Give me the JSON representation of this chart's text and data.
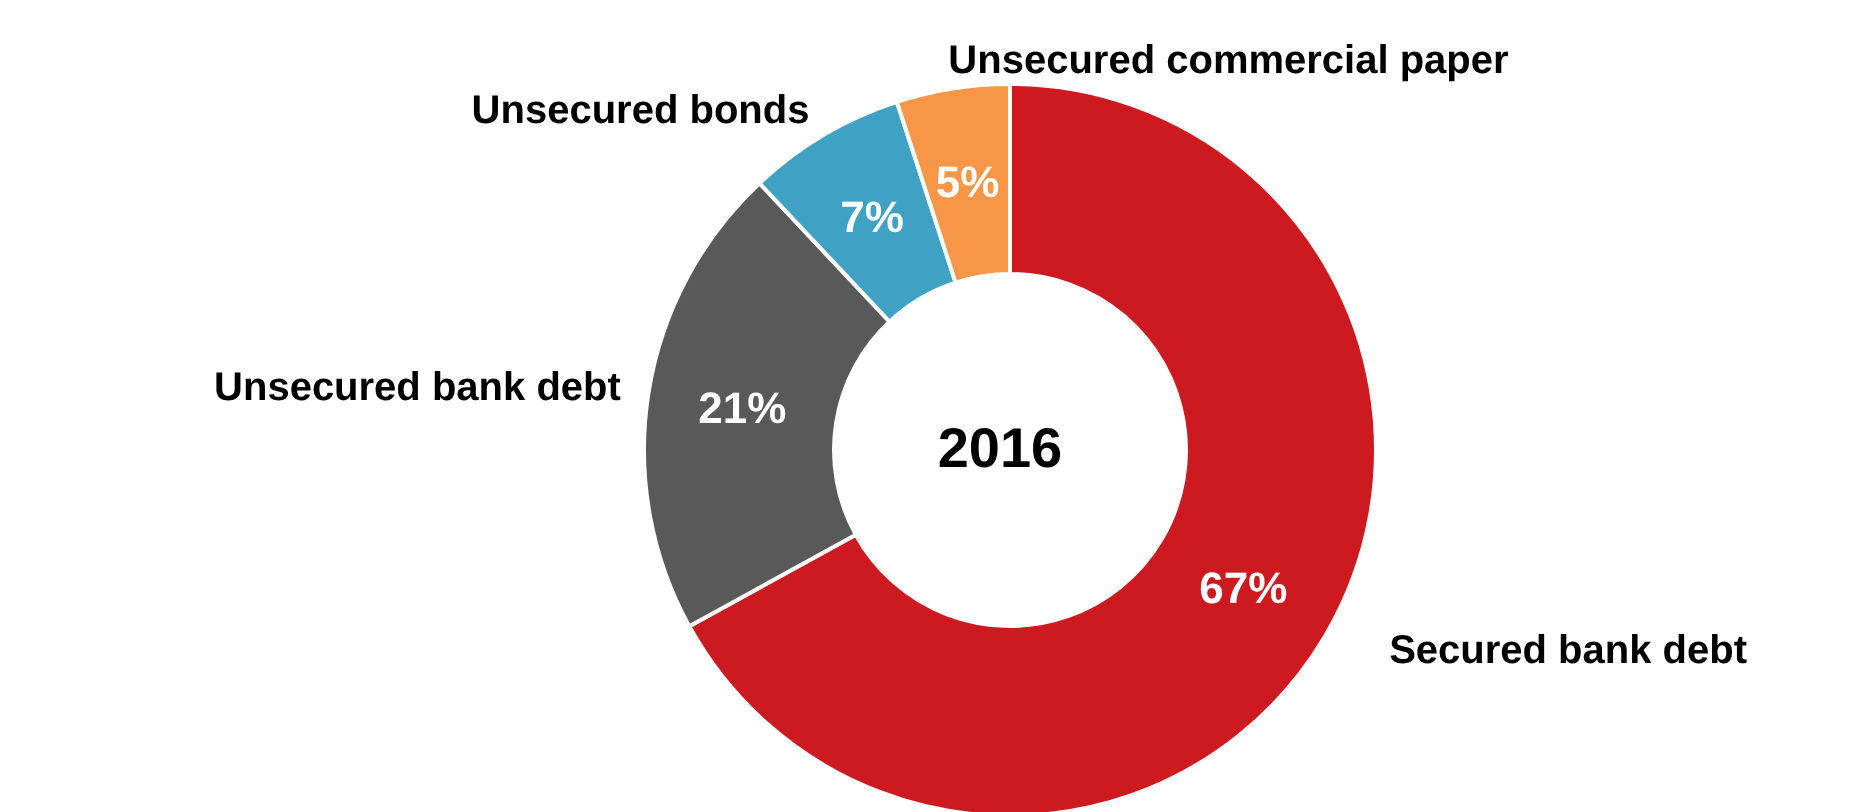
{
  "chart_data": {
    "type": "donut",
    "title": "2016",
    "categories": [
      "Secured bank debt",
      "Unsecured bank debt",
      "Unsecured bonds",
      "Unsecured commercial paper"
    ],
    "values": [
      67,
      21,
      7,
      5
    ],
    "value_labels": [
      "67%",
      "21%",
      "7%",
      "5%"
    ],
    "colors": [
      "#cc1a20",
      "#595959",
      "#3fa1c3",
      "#f79646"
    ]
  }
}
